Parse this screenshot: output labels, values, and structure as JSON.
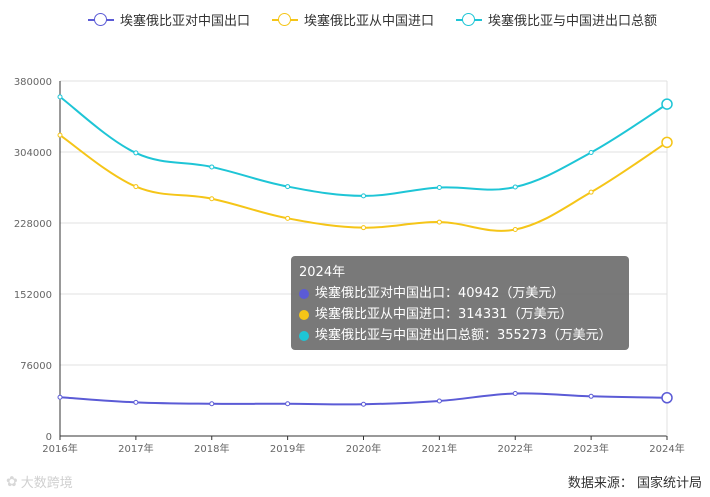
{
  "colors": {
    "export": "#5b5bd6",
    "import": "#f5c518",
    "total": "#1ec5d6",
    "grid": "#e0e0e0",
    "axis": "#666666"
  },
  "legend": [
    {
      "label": "埃塞俄比亚对中国出口",
      "color": "#5b5bd6"
    },
    {
      "label": "埃塞俄比亚从中国进口",
      "color": "#f5c518"
    },
    {
      "label": "埃塞俄比亚与中国进出口总额",
      "color": "#1ec5d6"
    }
  ],
  "chart_data": {
    "type": "line",
    "categories": [
      "2016年",
      "2017年",
      "2018年",
      "2019年",
      "2020年",
      "2021年",
      "2022年",
      "2023年",
      "2024年"
    ],
    "yticks": [
      "0",
      "76000",
      "152000",
      "228000",
      "304000",
      "380000"
    ],
    "ylim": [
      0,
      380000
    ],
    "grid": true,
    "legend_position": "top",
    "series": [
      {
        "name": "埃塞俄比亚对中国出口",
        "color": "#5b5bd6",
        "values": [
          41500,
          36000,
          34500,
          34500,
          34000,
          37500,
          45500,
          42500,
          40942
        ]
      },
      {
        "name": "埃塞俄比亚从中国进口",
        "color": "#f5c518",
        "values": [
          322000,
          267000,
          254000,
          233000,
          223000,
          229000,
          221000,
          261000,
          314331
        ]
      },
      {
        "name": "埃塞俄比亚与中国进出口总额",
        "color": "#1ec5d6",
        "values": [
          363000,
          303000,
          288000,
          267000,
          257000,
          266000,
          266500,
          303500,
          355273
        ]
      }
    ]
  },
  "tooltip": {
    "title": "2024年",
    "rows": [
      {
        "text": "埃塞俄比亚对中国出口：40942（万美元）",
        "color": "#5b5bd6"
      },
      {
        "text": "埃塞俄比亚从中国进口：314331（万美元）",
        "color": "#f5c518"
      },
      {
        "text": "埃塞俄比亚与中国进出口总额：355273（万美元）",
        "color": "#1ec5d6"
      }
    ]
  },
  "source": "数据来源：  国家统计局",
  "watermark": "大数跨境"
}
